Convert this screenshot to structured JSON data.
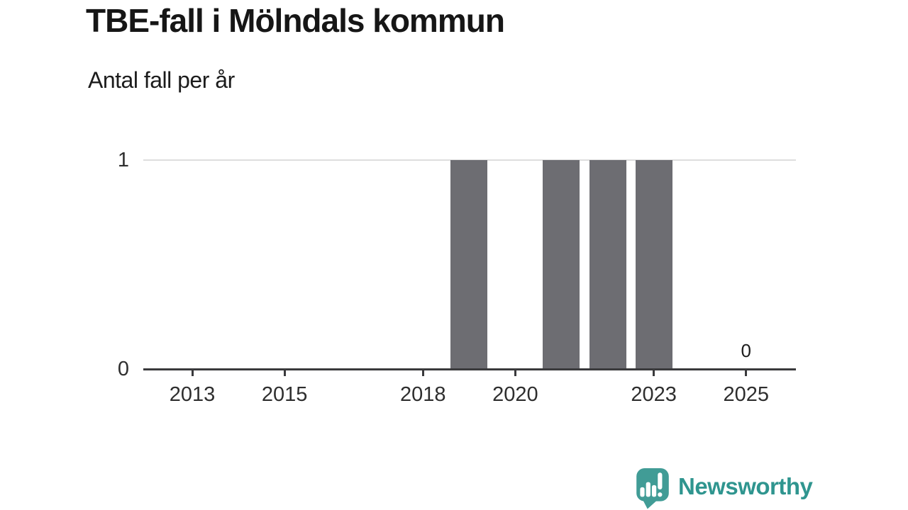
{
  "header": {
    "title": "TBE-fall i Mölndals kommun",
    "subtitle": "Antal fall per år"
  },
  "chart_data": {
    "type": "bar",
    "title": "TBE-fall i Mölndals kommun",
    "subtitle": "Antal fall per år",
    "categories": [
      2013,
      2014,
      2015,
      2016,
      2017,
      2018,
      2019,
      2020,
      2021,
      2022,
      2023,
      2024,
      2025
    ],
    "values": [
      0,
      0,
      0,
      0,
      0,
      0,
      1,
      0,
      1,
      1,
      1,
      0,
      0
    ],
    "xlabel": "",
    "ylabel": "",
    "ylim": [
      0,
      1
    ],
    "yticks": [
      "0",
      "1"
    ],
    "x_tick_labels": [
      "2013",
      "2015",
      "2018",
      "2020",
      "2023",
      "2025"
    ],
    "annotations": [
      {
        "year": 2025,
        "text": "0"
      }
    ],
    "grid": "horizontal gridline at y=1 only",
    "legend": "none",
    "bar_color": "#6d6d72",
    "gridline_color": "#dedede",
    "axis_color": "#3a3a3c"
  },
  "footer": {
    "brand": "Newsworthy",
    "brand_color": "#2f958f",
    "logo_icon": "newsworthy-speech-bubble-barchart-icon",
    "logo_icon_color": "#419c96"
  }
}
